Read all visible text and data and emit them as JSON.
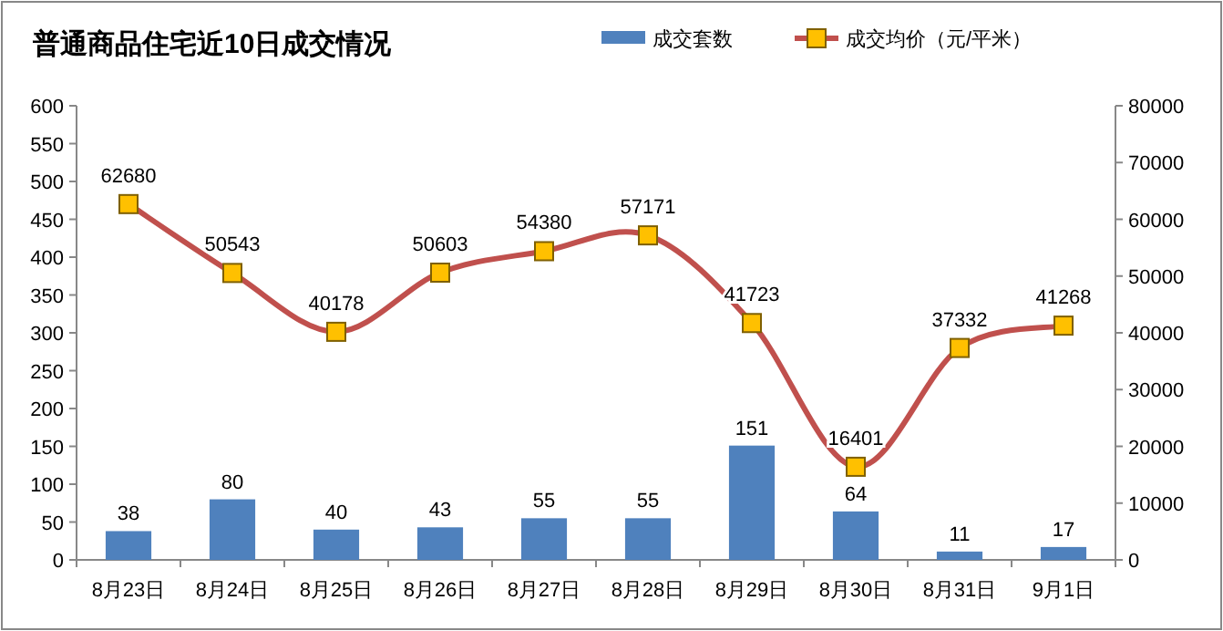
{
  "chart_data": {
    "type": "bar",
    "title": "普通商品住宅近10日成交情况",
    "categories": [
      "8月23日",
      "8月24日",
      "8月25日",
      "8月26日",
      "8月27日",
      "8月28日",
      "8月29日",
      "8月30日",
      "8月31日",
      "9月1日"
    ],
    "series": [
      {
        "name": "成交套数",
        "color": "#4f81bd",
        "values": [
          38,
          80,
          40,
          43,
          55,
          55,
          151,
          64,
          11,
          17
        ]
      },
      {
        "name": "成交均价（元/平米）",
        "type": "line",
        "axis": "y2",
        "color": "#c0504d",
        "marker": "square",
        "values": [
          62680,
          50543,
          40178,
          50603,
          54380,
          57171,
          41723,
          16401,
          37332,
          41268
        ]
      }
    ],
    "ylim": [
      0,
      600
    ],
    "yticks": [
      0,
      50,
      100,
      150,
      200,
      250,
      300,
      350,
      400,
      450,
      500,
      550,
      600
    ],
    "y2lim": [
      0,
      80000
    ],
    "y2ticks": [
      0,
      10000,
      20000,
      30000,
      40000,
      50000,
      60000,
      70000,
      80000
    ],
    "data_labels": true,
    "legend": "top",
    "grid": false
  }
}
